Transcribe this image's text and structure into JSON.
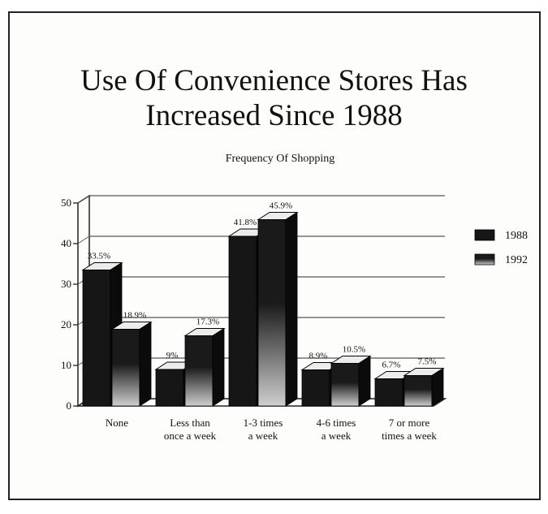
{
  "chart_data": {
    "type": "bar",
    "title": "Use Of Convenience Stores Has\nIncreased Since 1988",
    "subtitle": "Frequency Of Shopping",
    "categories": [
      [
        "None"
      ],
      [
        "Less than",
        "once a week"
      ],
      [
        "1-3 times",
        "a week"
      ],
      [
        "4-6 times",
        "a week"
      ],
      [
        "7 or more",
        "times a week"
      ]
    ],
    "series": [
      {
        "name": "1988",
        "values": [
          33.5,
          9,
          41.8,
          8.9,
          6.7
        ],
        "labels": [
          "33.5%",
          "9%",
          "41.8%",
          "8.9%",
          "6.7%"
        ]
      },
      {
        "name": "1992",
        "values": [
          18.9,
          17.3,
          45.9,
          10.5,
          7.5
        ],
        "labels": [
          "18.9%",
          "17.3%",
          "45.9%",
          "10.5%",
          "7.5%"
        ]
      }
    ],
    "ylim": [
      0,
      50
    ],
    "yticks": [
      0,
      10,
      20,
      30,
      40,
      50
    ],
    "xlabel": "",
    "ylabel": "",
    "grid": true,
    "legend_position": "right",
    "colors": {
      "s1988": "#161616",
      "s1992_top": "#1a1a1a",
      "s1992_bottom": "#cfcfcf",
      "grid": "#555555"
    }
  }
}
